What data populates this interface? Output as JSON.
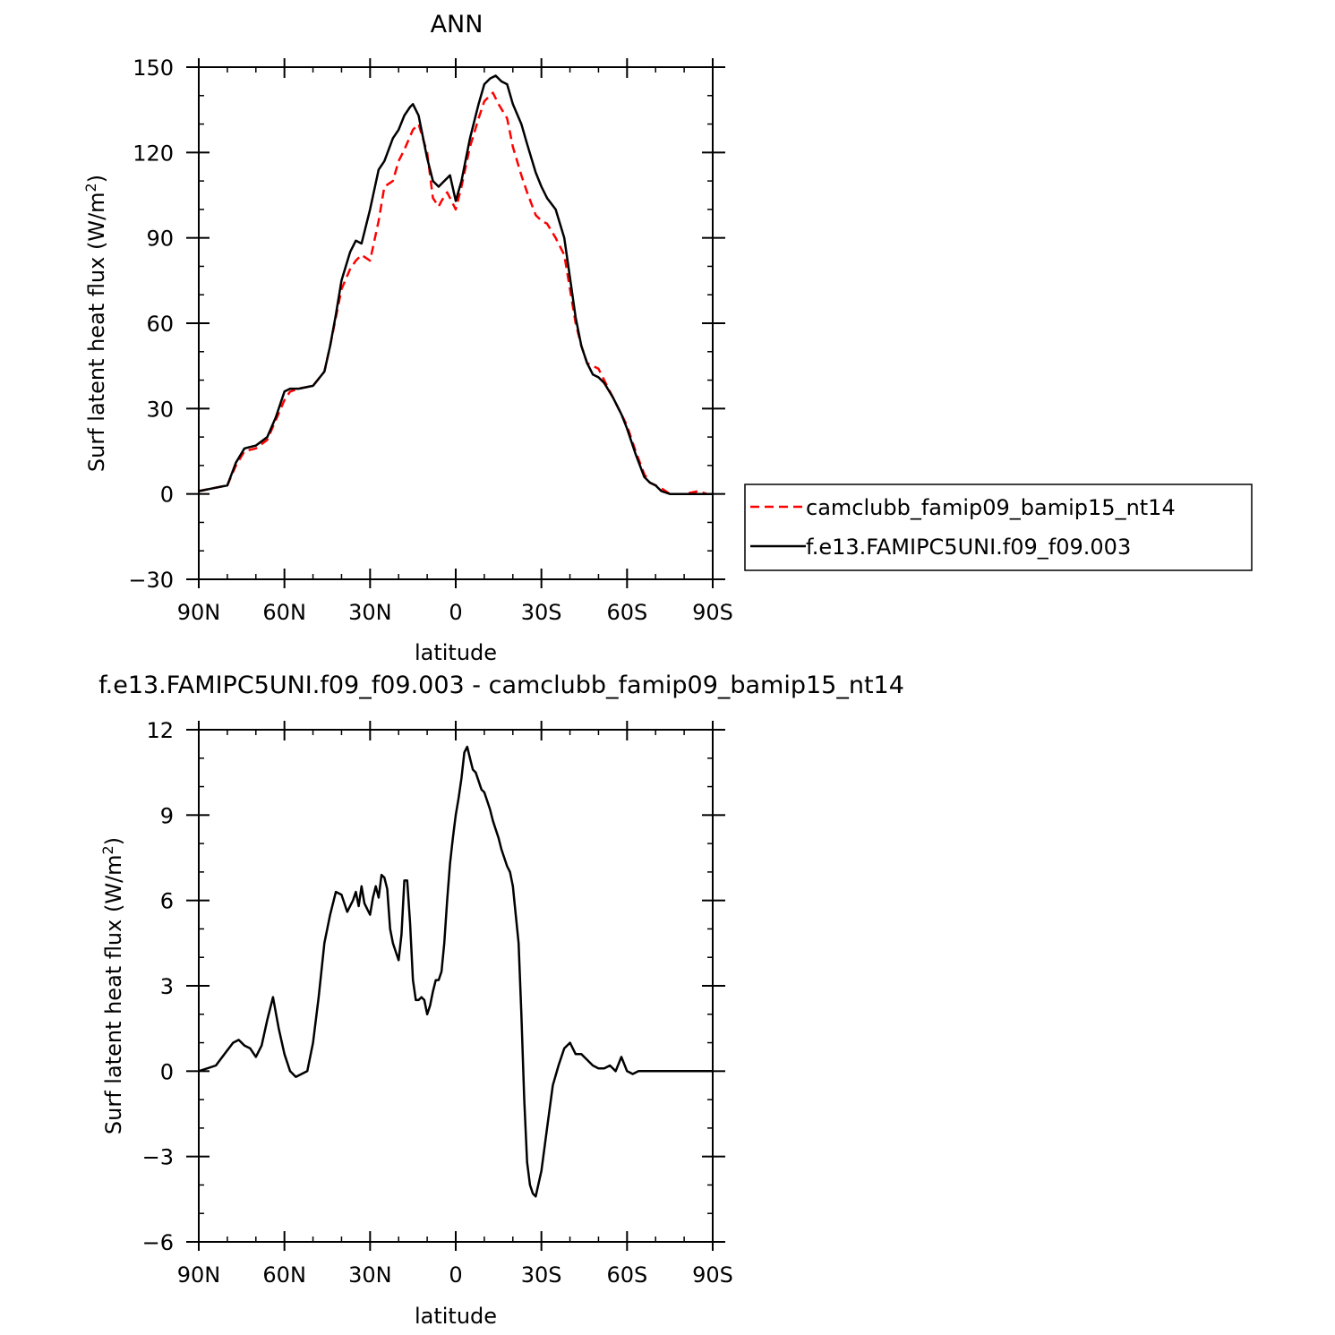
{
  "chart_data": [
    {
      "type": "line",
      "title": "ANN",
      "xlabel": "latitude",
      "ylabel": "Surf latent heat flux (W/m²)",
      "ylabel_main": "Surf latent heat flux (W/m",
      "ylabel_sup": "2",
      "ylabel_close": ")",
      "xlim": [
        90,
        -90
      ],
      "ylim": [
        -30,
        150
      ],
      "x_ticks": [
        90,
        60,
        30,
        0,
        -30,
        -60,
        -90
      ],
      "x_tick_labels": [
        "90N",
        "60N",
        "30N",
        "0",
        "30S",
        "60S",
        "90S"
      ],
      "y_ticks": [
        -30,
        0,
        30,
        60,
        90,
        120,
        150
      ],
      "y_tick_labels": [
        "−30",
        "0",
        "30",
        "60",
        "90",
        "120",
        "150"
      ],
      "grid": false,
      "legend_position": "right",
      "series": [
        {
          "name": "camclubb_famip09_bamip15_nt14",
          "color": "#ff0000",
          "style": "dashed",
          "x": [
            90,
            85,
            80,
            77,
            74,
            70,
            66,
            63,
            60,
            58,
            55,
            50,
            46,
            44,
            42,
            40,
            37,
            35,
            33,
            30,
            27,
            25,
            22,
            20,
            18,
            15,
            13,
            10,
            8,
            6,
            5,
            3,
            1,
            0,
            -2,
            -5,
            -8,
            -10,
            -13,
            -15,
            -18,
            -20,
            -23,
            -25,
            -28,
            -30,
            -32,
            -35,
            -38,
            -40,
            -42,
            -44,
            -46,
            -48,
            -50,
            -52,
            -55,
            -58,
            -60,
            -63,
            -66,
            -68,
            -70,
            -72,
            -75,
            -78,
            -80,
            -85,
            -88,
            -90
          ],
          "values": [
            1,
            2,
            3,
            10,
            15,
            16,
            19,
            26,
            33,
            36,
            37,
            38,
            43,
            52,
            62,
            72,
            79,
            82,
            84,
            82,
            96,
            108,
            110,
            117,
            121,
            128,
            130,
            120,
            104,
            101,
            103,
            106,
            102,
            100,
            108,
            122,
            132,
            138,
            141,
            137,
            132,
            122,
            112,
            106,
            98,
            96,
            95,
            90,
            84,
            72,
            60,
            52,
            46,
            45,
            44,
            40,
            34,
            28,
            24,
            15,
            7,
            4,
            3,
            2,
            0,
            0,
            0,
            1,
            0,
            0
          ]
        },
        {
          "name": "f.e13.FAMIPC5UNI.f09_f09.003",
          "color": "#000000",
          "style": "solid",
          "x": [
            90,
            85,
            80,
            77,
            74,
            70,
            66,
            63,
            60,
            58,
            55,
            50,
            46,
            44,
            42,
            40,
            37,
            35,
            33,
            30,
            27,
            25,
            22,
            20,
            18,
            16,
            15,
            13,
            10,
            8,
            6,
            4,
            2,
            0,
            -2,
            -5,
            -8,
            -10,
            -12,
            -14,
            -16,
            -18,
            -20,
            -23,
            -25,
            -28,
            -30,
            -32,
            -35,
            -38,
            -40,
            -42,
            -44,
            -46,
            -48,
            -50,
            -52,
            -55,
            -58,
            -60,
            -63,
            -66,
            -68,
            -70,
            -72,
            -75,
            -78,
            -80,
            -85,
            -88,
            -90
          ],
          "values": [
            1,
            2,
            3,
            11,
            16,
            17,
            20,
            27,
            36,
            37,
            37,
            38,
            43,
            52,
            63,
            75,
            85,
            89,
            88,
            100,
            114,
            117,
            125,
            128,
            133,
            136,
            137,
            133,
            118,
            110,
            108,
            110,
            112,
            103,
            110,
            125,
            137,
            144,
            146,
            147,
            145,
            144,
            137,
            130,
            123,
            113,
            108,
            104,
            100,
            90,
            76,
            62,
            52,
            46,
            42,
            41,
            39,
            34,
            28,
            23,
            14,
            6,
            4,
            3,
            1,
            0,
            0,
            0,
            0,
            0,
            0
          ]
        }
      ]
    },
    {
      "type": "line",
      "title": "f.e13.FAMIPC5UNI.f09_f09.003 - camclubb_famip09_bamip15_nt14",
      "xlabel": "latitude",
      "ylabel": "Surf latent heat flux (W/m²)",
      "ylabel_main": "Surf latent heat flux (W/m",
      "ylabel_sup": "2",
      "ylabel_close": ")",
      "xlim": [
        90,
        -90
      ],
      "ylim": [
        -6,
        12
      ],
      "x_ticks": [
        90,
        60,
        30,
        0,
        -30,
        -60,
        -90
      ],
      "x_tick_labels": [
        "90N",
        "60N",
        "30N",
        "0",
        "30S",
        "60S",
        "90S"
      ],
      "y_ticks": [
        -6,
        -3,
        0,
        3,
        6,
        9,
        12
      ],
      "y_tick_labels": [
        "−6",
        "−3",
        "0",
        "3",
        "6",
        "9",
        "12"
      ],
      "grid": false,
      "series": [
        {
          "name": "",
          "color": "#000000",
          "style": "solid",
          "x": [
            90,
            87,
            84,
            81,
            78,
            76,
            74,
            72,
            70,
            68,
            66,
            64,
            62,
            60,
            58,
            56,
            54,
            52,
            50,
            48,
            46,
            44,
            42,
            40,
            38,
            36,
            35,
            34,
            33,
            32,
            31,
            30,
            29,
            28,
            27,
            26,
            25,
            24,
            23,
            22,
            21,
            20,
            19,
            18,
            17,
            16,
            15,
            14,
            13,
            12,
            11,
            10,
            9,
            8,
            7,
            6,
            5,
            4,
            3,
            2,
            1,
            0,
            -1,
            -2,
            -3,
            -4,
            -5,
            -6,
            -7,
            -8,
            -9,
            -10,
            -11,
            -12,
            -13,
            -14,
            -15,
            -16,
            -17,
            -18,
            -19,
            -20,
            -21,
            -22,
            -23,
            -24,
            -25,
            -26,
            -27,
            -28,
            -30,
            -32,
            -34,
            -36,
            -38,
            -40,
            -42,
            -44,
            -46,
            -48,
            -50,
            -52,
            -54,
            -56,
            -58,
            -60,
            -62,
            -64,
            -66,
            -68,
            -70,
            -72,
            -74,
            -76,
            -78,
            -80,
            -82,
            -84,
            -86,
            -88,
            -90
          ],
          "values": [
            0,
            0.1,
            0.2,
            0.6,
            1.0,
            1.1,
            0.9,
            0.8,
            0.5,
            0.9,
            1.8,
            2.6,
            1.5,
            0.6,
            0,
            -0.2,
            -0.1,
            0,
            1.0,
            2.6,
            4.5,
            5.5,
            6.3,
            6.2,
            5.6,
            6.0,
            6.3,
            5.8,
            6.5,
            5.9,
            5.7,
            5.5,
            6.1,
            6.5,
            6.1,
            6.9,
            6.8,
            6.4,
            5.0,
            4.5,
            4.2,
            3.9,
            4.8,
            6.7,
            6.7,
            5.2,
            3.2,
            2.5,
            2.5,
            2.6,
            2.5,
            2.0,
            2.3,
            2.8,
            3.2,
            3.2,
            3.5,
            4.5,
            6.0,
            7.3,
            8.2,
            9.0,
            9.6,
            10.3,
            11.2,
            11.4,
            11.0,
            10.6,
            10.5,
            10.2,
            9.9,
            9.8,
            9.5,
            9.2,
            8.8,
            8.5,
            8.2,
            7.8,
            7.5,
            7.2,
            7.0,
            6.5,
            5.5,
            4.5,
            2.0,
            -1.0,
            -3.2,
            -4.0,
            -4.3,
            -4.4,
            -3.5,
            -2.0,
            -0.5,
            0.2,
            0.8,
            1.0,
            0.6,
            0.6,
            0.4,
            0.2,
            0.1,
            0.1,
            0.2,
            0.0,
            0.5,
            0,
            -0.1,
            0,
            0,
            0,
            0,
            0,
            0,
            0,
            0,
            0,
            0,
            0,
            0,
            0,
            0
          ]
        }
      ]
    }
  ]
}
